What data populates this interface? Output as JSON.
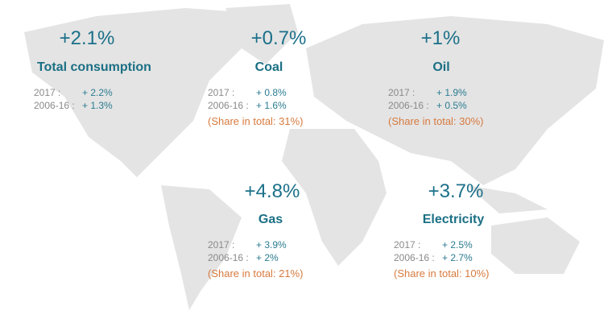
{
  "colors": {
    "value": "#1b7089",
    "text": "#8a8a8a",
    "share": "#d77a3e",
    "map": "#e4e4e4"
  },
  "blocks": [
    {
      "change": "+2.1%",
      "title": "Total consumption",
      "rows": [
        {
          "label": "2017 :",
          "value": "+ 2.2%"
        },
        {
          "label": "2006-16 :",
          "value": "+ 1.3%"
        }
      ]
    },
    {
      "change": "+0.7%",
      "title": "Coal",
      "rows": [
        {
          "label": "2017 :",
          "value": "+ 0.8%"
        },
        {
          "label": "2006-16 :",
          "value": "+ 1.6%"
        }
      ],
      "share": "(Share in total: 31%)"
    },
    {
      "change": "+1%",
      "title": "Oil",
      "rows": [
        {
          "label": "2017 :",
          "value": "+ 1.9%"
        },
        {
          "label": "2006-16 :",
          "value": "+ 0.5%"
        }
      ],
      "share": "(Share in total: 30%)"
    },
    {
      "change": "+4.8%",
      "title": "Gas",
      "rows": [
        {
          "label": "2017 :",
          "value": "+ 3.9%"
        },
        {
          "label": "2006-16 :",
          "value": "+ 2%"
        }
      ],
      "share": "(Share in total: 21%)"
    },
    {
      "change": "+3.7%",
      "title": "Electricity",
      "rows": [
        {
          "label": "2017 :",
          "value": "+ 2.5%"
        },
        {
          "label": "2006-16 :",
          "value": "+ 2.7%"
        }
      ],
      "share": "(Share in total: 10%)"
    }
  ]
}
